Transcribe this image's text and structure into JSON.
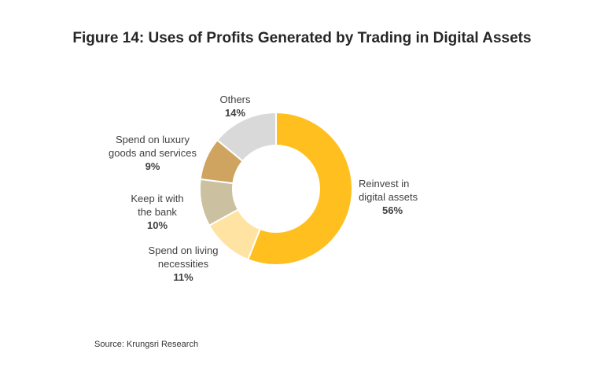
{
  "chart_data": {
    "type": "pie",
    "donut": true,
    "title": "Figure 14: Uses of Profits Generated by Trading in Digital Assets",
    "categories": [
      "Reinvest in digital assets",
      "Spend on living necessities",
      "Keep it with the bank",
      "Spend on luxury goods and services",
      "Others"
    ],
    "labels": [
      {
        "lines": [
          "Reinvest in",
          "digital assets"
        ],
        "pct": "56%"
      },
      {
        "lines": [
          "Spend on living",
          "necessities"
        ],
        "pct": "11%"
      },
      {
        "lines": [
          "Keep it with",
          "the bank"
        ],
        "pct": "10%"
      },
      {
        "lines": [
          "Spend on luxury",
          "goods and services"
        ],
        "pct": "9%"
      },
      {
        "lines": [
          "Others"
        ],
        "pct": "14%"
      }
    ],
    "values": [
      56,
      11,
      10,
      9,
      14
    ],
    "colors": [
      "#FFBF1F",
      "#FFE3A3",
      "#CBC1A0",
      "#CFA360",
      "#D9D9D9"
    ],
    "source": "Source: Krungsri Research"
  }
}
